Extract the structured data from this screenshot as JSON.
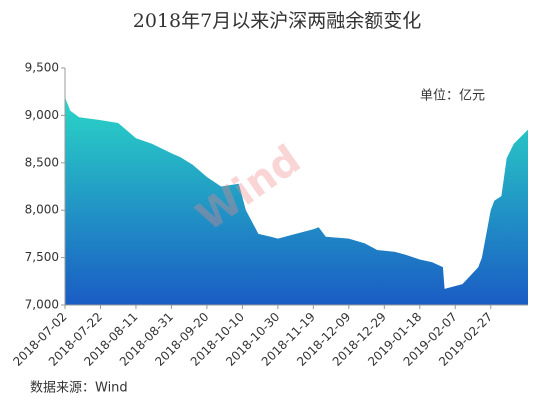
{
  "chart_data": {
    "type": "area",
    "title": "2018年7月以来沪深两融余额变化",
    "unit_label": "单位：亿元",
    "source": "数据来源：Wind",
    "watermark": "Wind",
    "gradient": [
      "#2ad6c6",
      "#1a5cc4"
    ],
    "series": [
      {
        "name": "两融余额",
        "color": "#1a5cc4",
        "x": [
          "2018-07-02",
          "2018-07-05",
          "2018-07-10",
          "2018-07-22",
          "2018-08-01",
          "2018-08-11",
          "2018-08-20",
          "2018-08-31",
          "2018-09-05",
          "2018-09-12",
          "2018-09-20",
          "2018-09-28",
          "2018-10-08",
          "2018-10-12",
          "2018-10-19",
          "2018-10-26",
          "2018-10-30",
          "2018-11-09",
          "2018-11-19",
          "2018-11-22",
          "2018-11-26",
          "2018-12-09",
          "2018-12-18",
          "2018-12-25",
          "2019-01-04",
          "2019-01-10",
          "2019-01-18",
          "2019-01-25",
          "2019-01-31",
          "2019-02-01",
          "2019-02-11",
          "2019-02-15",
          "2019-02-20",
          "2019-02-22",
          "2019-02-25",
          "2019-02-27",
          "2019-03-01",
          "2019-03-05",
          "2019-03-08",
          "2019-03-12",
          "2019-03-20"
        ],
        "values": [
          9190,
          9050,
          8980,
          8950,
          8920,
          8760,
          8700,
          8600,
          8560,
          8480,
          8350,
          8250,
          8280,
          8000,
          7750,
          7720,
          7700,
          7750,
          7800,
          7820,
          7720,
          7700,
          7650,
          7580,
          7560,
          7530,
          7480,
          7450,
          7400,
          7170,
          7220,
          7300,
          7400,
          7500,
          7800,
          8000,
          8100,
          8150,
          8550,
          8700,
          8850
        ]
      }
    ],
    "xlim": [
      "2018-07-02",
      "2019-03-20"
    ],
    "xticks": [
      "2018-07-02",
      "2018-07-22",
      "2018-08-11",
      "2018-08-31",
      "2018-09-20",
      "2018-10-10",
      "2018-10-30",
      "2018-11-19",
      "2018-12-09",
      "2018-12-29",
      "2019-01-18",
      "2019-02-07",
      "2019-02-27"
    ],
    "ylim": [
      7000,
      9500
    ],
    "yticks": [
      {
        "value": 7000,
        "label": "7,000"
      },
      {
        "value": 7500,
        "label": "7,500"
      },
      {
        "value": 8000,
        "label": "8,000"
      },
      {
        "value": 8500,
        "label": "8,500"
      },
      {
        "value": 9000,
        "label": "9,000"
      },
      {
        "value": 9500,
        "label": "9,500"
      }
    ],
    "grid": false
  }
}
